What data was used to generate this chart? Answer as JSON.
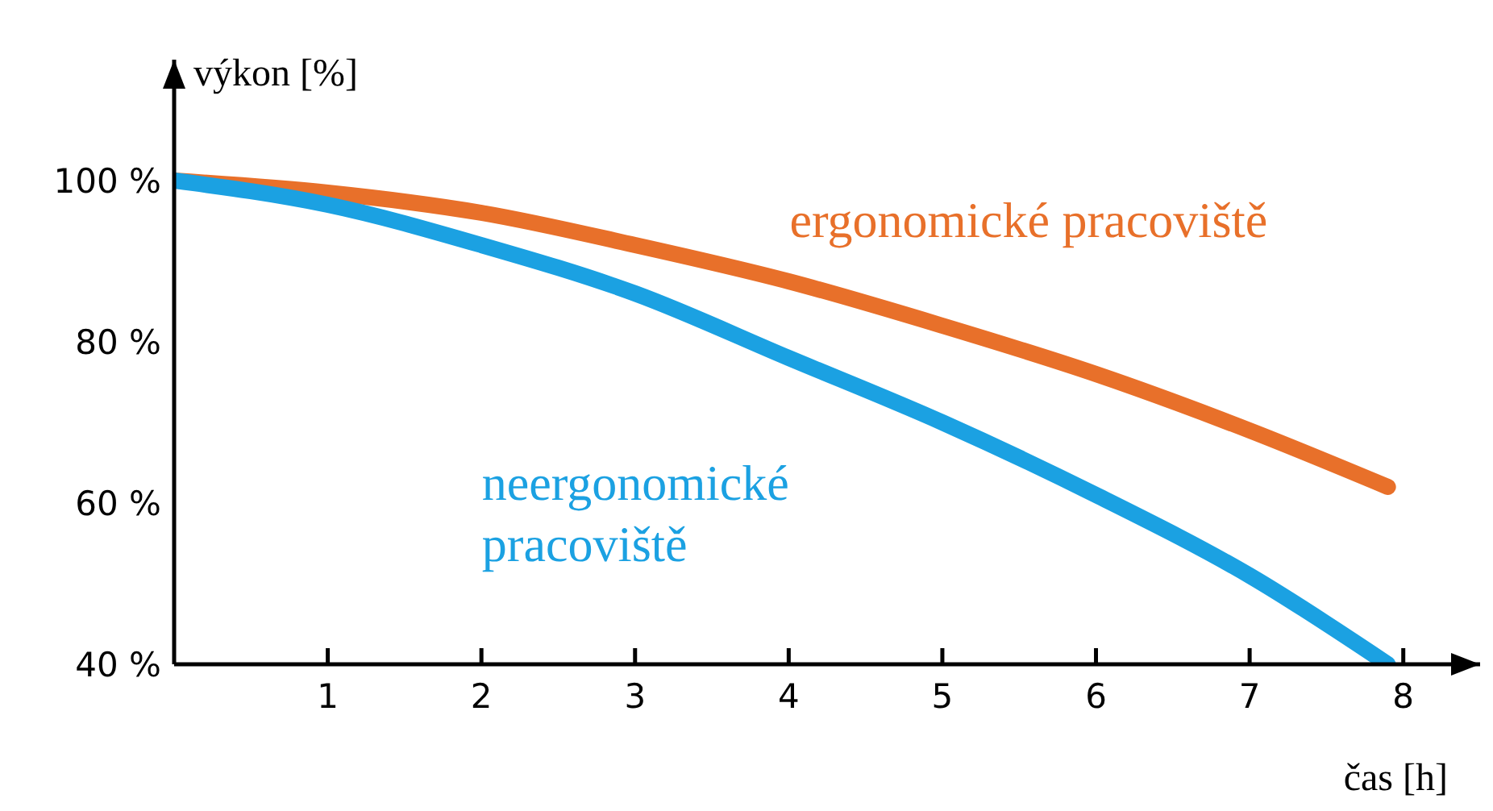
{
  "chart_data": {
    "type": "line",
    "xlabel": "čas [h]",
    "ylabel": "výkon [%]",
    "x": [
      0,
      1,
      2,
      3,
      4,
      5,
      6,
      7,
      7.9
    ],
    "series": [
      {
        "name": "ergonomické pracoviště",
        "color": "#e8702a",
        "values": [
          100,
          98.5,
          96,
          92,
          87.5,
          82,
          76,
          69,
          62
        ]
      },
      {
        "name": "neergonomické pracoviště",
        "color": "#1ba1e2",
        "values": [
          100,
          97,
          92,
          86,
          78,
          70,
          61,
          51,
          40
        ]
      }
    ],
    "xlim": [
      0,
      8.5
    ],
    "xticks": [
      1,
      2,
      3,
      4,
      5,
      6,
      7,
      8
    ],
    "ylim": [
      40,
      115
    ],
    "yticks": [
      {
        "value": 40,
        "label": "40 %"
      },
      {
        "value": 60,
        "label": "60 %"
      },
      {
        "value": 80,
        "label": "80 %"
      },
      {
        "value": 100,
        "label": "100 %"
      }
    ],
    "grid": false,
    "legend": false,
    "marker": "none",
    "line_style": "solid"
  }
}
